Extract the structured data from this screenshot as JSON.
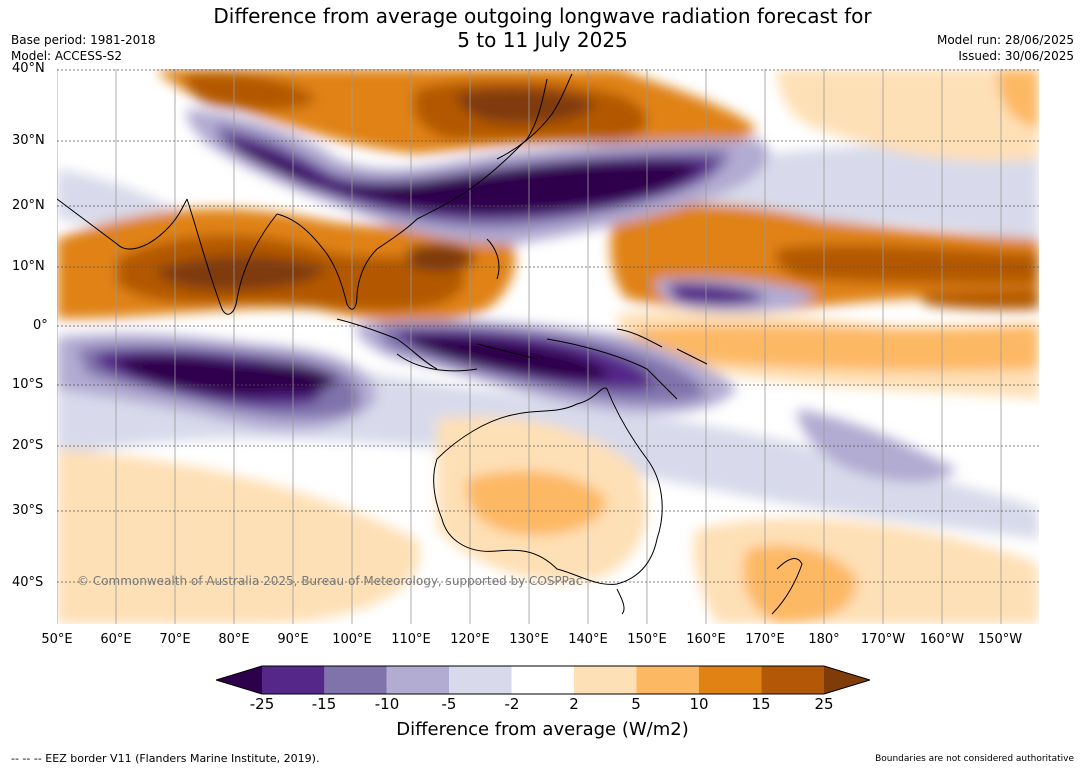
{
  "title": {
    "line1": "Difference from average outgoing longwave radiation forecast for",
    "line2": "5 to 11 July 2025"
  },
  "meta_left": {
    "base_period": "Base period: 1981-2018",
    "model": "Model: ACCESS-S2"
  },
  "meta_right": {
    "model_run": "Model run: 28/06/2025",
    "issued": "Issued: 30/06/2025"
  },
  "lat_labels": [
    "40°N",
    "30°N",
    "20°N",
    "10°N",
    "0°",
    "10°S",
    "20°S",
    "30°S",
    "40°S"
  ],
  "lon_labels": [
    "50°E",
    "60°E",
    "70°E",
    "80°E",
    "90°E",
    "100°E",
    "110°E",
    "120°E",
    "130°E",
    "140°E",
    "150°E",
    "160°E",
    "170°E",
    "180°",
    "170°W",
    "160°W",
    "150°W"
  ],
  "copyright": "© Commonwealth of Australia 2025, Bureau of Meteorology, supported by COSPPac",
  "legend": {
    "ticks": [
      "-25",
      "-15",
      "-10",
      "-5",
      "-2",
      "2",
      "5",
      "10",
      "15",
      "25"
    ],
    "colors": [
      "#2d004b",
      "#542788",
      "#8073ac",
      "#b2abd2",
      "#d8daeb",
      "#ffffff",
      "#fee0b6",
      "#fdb863",
      "#e08214",
      "#b35806",
      "#7f3b08"
    ],
    "label": "Difference from average (W/m2)"
  },
  "footer_left": "--  --  -- EEZ border V11 (Flanders Marine Institute, 2019).",
  "footer_right": "Boundaries are not considered authoritative"
}
